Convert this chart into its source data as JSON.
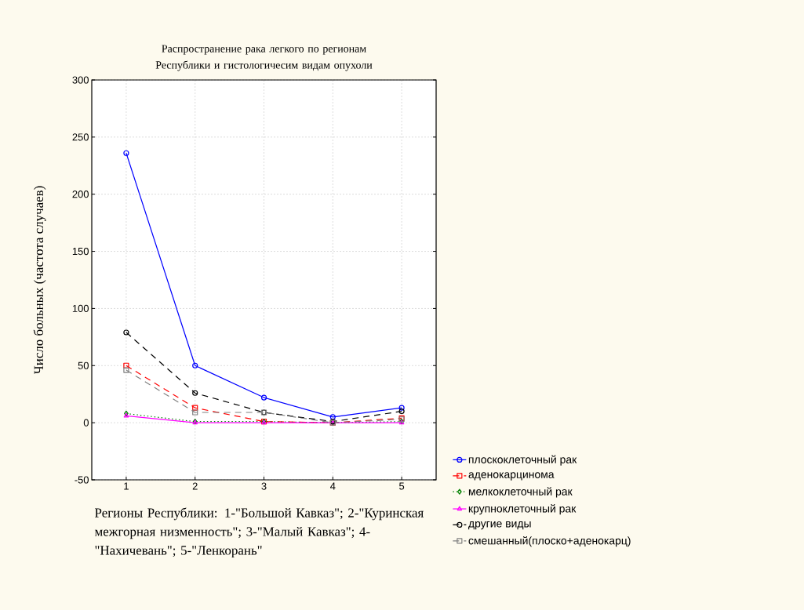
{
  "chart_data": {
    "type": "line",
    "title": "Распространение рака легкого по регионам Республики и гистологичесим видам опухоли",
    "xlabel": "Регионы Республики: 1-\"Большой Кавказ\"; 2-\"Куринская межгорная низменность\"; 3-\"Малый Кавказ\"; 4-\"Нахичевань\"; 5-\"Ленкорань\"",
    "ylabel": "Число больных (частота случаев)",
    "x": [
      1,
      2,
      3,
      4,
      5
    ],
    "xlim": [
      0.5,
      5.5
    ],
    "xticks": [
      1,
      2,
      3,
      4,
      5
    ],
    "ylim": [
      -50,
      300
    ],
    "yticks": [
      -50,
      0,
      50,
      100,
      150,
      200,
      250,
      300
    ],
    "grid": true,
    "legend": "bottom right",
    "series": [
      {
        "name": "плоскоклеточный рак",
        "color": "#0000ff",
        "marker": "circle",
        "line_style": "solid",
        "values": [
          236,
          50,
          22,
          5,
          13
        ]
      },
      {
        "name": "аденокарцинома",
        "color": "#ff0000",
        "marker": "square",
        "line_style": "dashed",
        "values": [
          50,
          13,
          1,
          0,
          4
        ]
      },
      {
        "name": "мелкоклеточный рак",
        "color": "#008000",
        "marker": "diamond",
        "line_style": "dotted",
        "values": [
          8,
          1,
          1,
          0,
          1
        ]
      },
      {
        "name": "крупноклеточный рак",
        "color": "#ff00ff",
        "marker": "triangle",
        "line_style": "solid",
        "values": [
          6,
          0,
          0,
          0,
          0
        ]
      },
      {
        "name": "другие виды",
        "color": "#000000",
        "marker": "circle",
        "line_style": "dashed",
        "values": [
          79,
          26,
          9,
          1,
          10
        ]
      },
      {
        "name": "смешанный(плоско+аденокарц)",
        "color": "#808080",
        "marker": "square",
        "line_style": "dashed",
        "values": [
          46,
          9,
          9,
          0,
          3
        ]
      }
    ]
  }
}
